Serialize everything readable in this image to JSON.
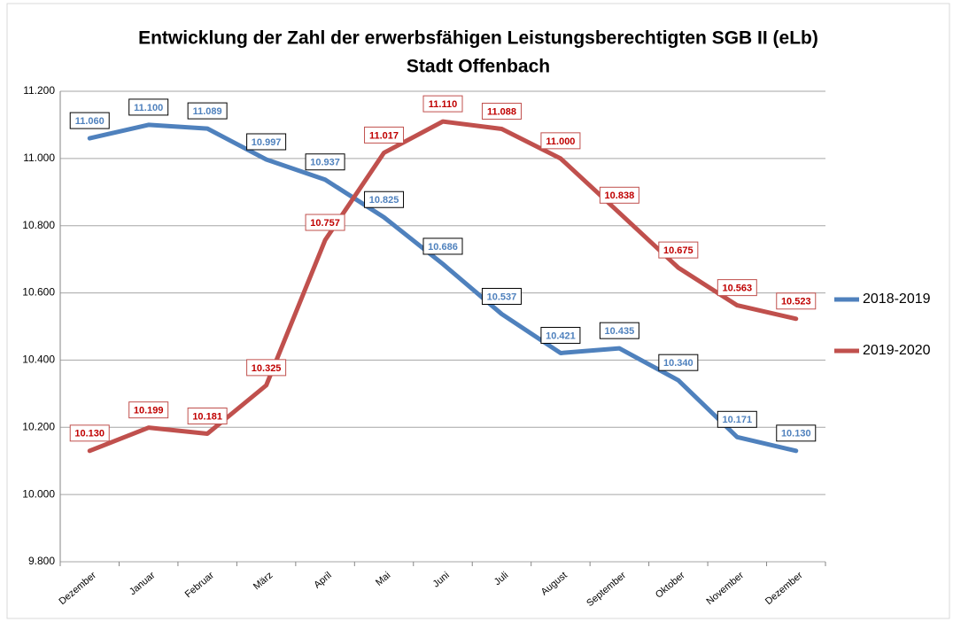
{
  "chart_data": {
    "type": "line",
    "title": "Entwicklung der Zahl der erwerbsfähigen Leistungsberechtigten SGB II (eLb)",
    "subtitle": "Stadt Offenbach",
    "categories": [
      "Dezember",
      "Januar",
      "Februar",
      "März",
      "April",
      "Mai",
      "Juni",
      "Juli",
      "August",
      "September",
      "Oktober",
      "November",
      "Dezember"
    ],
    "series": [
      {
        "name": "2018-2019",
        "color": "#4f81bd",
        "values": [
          11060,
          11100,
          11089,
          10997,
          10937,
          10825,
          10686,
          10537,
          10421,
          10435,
          10340,
          10171,
          10130
        ],
        "value_labels": [
          "11.060",
          "11.100",
          "11.089",
          "10.997",
          "10.937",
          "10.825",
          "10.686",
          "10.537",
          "10.421",
          "10.435",
          "10.340",
          "10.171",
          "10.130"
        ]
      },
      {
        "name": "2019-2020",
        "color": "#c0504d",
        "values": [
          10130,
          10199,
          10181,
          10325,
          10757,
          11017,
          11110,
          11088,
          11000,
          10838,
          10675,
          10563,
          10523
        ],
        "value_labels": [
          "10.130",
          "10.199",
          "10.181",
          "10.325",
          "10.757",
          "11.017",
          "11.110",
          "11.088",
          "11.000",
          "10.838",
          "10.675",
          "10.563",
          "10.523"
        ]
      }
    ],
    "ylim": [
      9800,
      11200
    ],
    "yticks": [
      {
        "value": 9800,
        "label": "9.800"
      },
      {
        "value": 10000,
        "label": "10.000"
      },
      {
        "value": 10200,
        "label": "10.200"
      },
      {
        "value": 10400,
        "label": "10.400"
      },
      {
        "value": 10600,
        "label": "10.600"
      },
      {
        "value": 10800,
        "label": "10.800"
      },
      {
        "value": 11000,
        "label": "11.000"
      },
      {
        "value": 11200,
        "label": "11.200"
      }
    ],
    "grid": true,
    "legend": "right"
  }
}
